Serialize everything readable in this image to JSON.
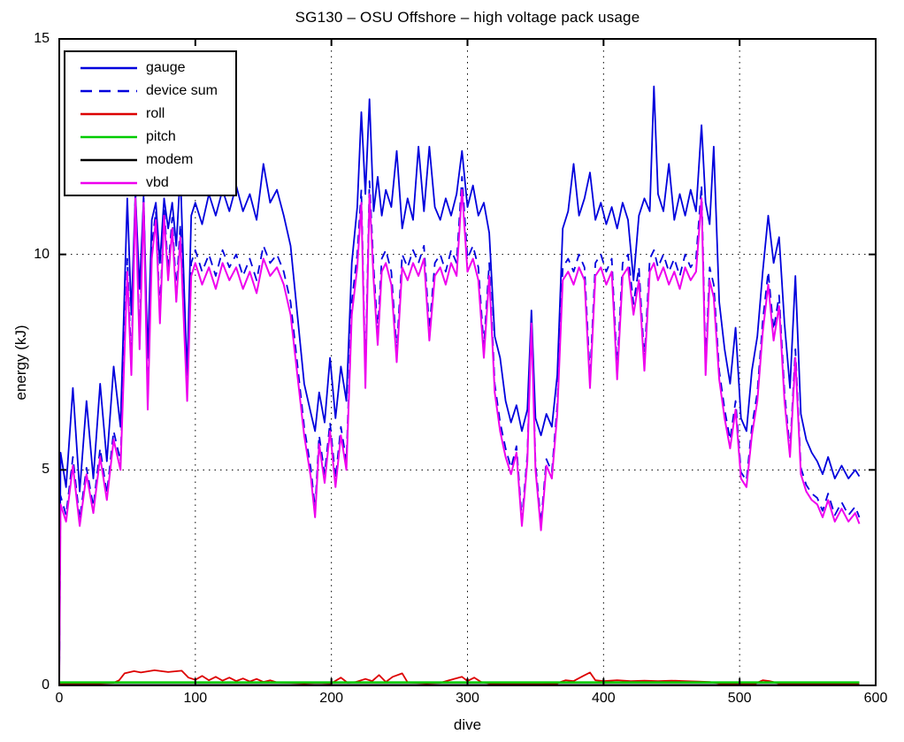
{
  "chart_data": {
    "type": "line",
    "title": "SG130 – OSU Offshore – high voltage pack usage",
    "xlabel": "dive",
    "ylabel": "energy (kJ)",
    "xlim": [
      0,
      600
    ],
    "ylim": [
      0,
      15
    ],
    "x_ticks": [
      0,
      100,
      200,
      300,
      400,
      500,
      600
    ],
    "y_ticks": [
      0,
      5,
      10,
      15
    ],
    "grid": true,
    "grid_style": "dotted",
    "legend_position": "top-left",
    "axis_color": "#000000",
    "x": [
      0,
      1,
      5,
      10,
      15,
      20,
      25,
      30,
      35,
      40,
      45,
      50,
      53,
      56,
      59,
      62,
      65,
      68,
      71,
      74,
      77,
      80,
      83,
      86,
      89,
      92,
      94,
      97,
      100,
      105,
      110,
      115,
      120,
      125,
      130,
      135,
      140,
      145,
      150,
      155,
      160,
      165,
      170,
      175,
      180,
      185,
      188,
      191,
      195,
      199,
      203,
      207,
      211,
      215,
      219,
      222,
      225,
      228,
      231,
      234,
      237,
      240,
      244,
      248,
      252,
      256,
      260,
      264,
      268,
      272,
      276,
      280,
      284,
      288,
      292,
      296,
      300,
      304,
      308,
      312,
      316,
      320,
      324,
      328,
      332,
      336,
      340,
      344,
      347,
      350,
      354,
      358,
      362,
      366,
      370,
      374,
      378,
      382,
      386,
      390,
      394,
      398,
      402,
      406,
      410,
      414,
      418,
      422,
      426,
      430,
      434,
      437,
      440,
      444,
      448,
      452,
      456,
      460,
      464,
      468,
      472,
      475,
      478,
      481,
      485,
      489,
      493,
      497,
      501,
      505,
      509,
      513,
      517,
      521,
      525,
      529,
      533,
      537,
      541,
      545,
      549,
      553,
      557,
      561,
      565,
      570,
      575,
      580,
      585,
      588
    ],
    "series": [
      {
        "name": "gauge",
        "color": "#0000dd",
        "style": "solid",
        "width": 1.8,
        "values": [
          0.15,
          5.4,
          4.6,
          6.9,
          4.5,
          6.6,
          4.8,
          7.0,
          5.2,
          7.4,
          6.0,
          11.3,
          8.6,
          11.4,
          9.2,
          11.3,
          7.6,
          10.8,
          11.2,
          9.8,
          11.3,
          10.6,
          11.2,
          10.2,
          11.9,
          9.0,
          7.2,
          10.9,
          11.2,
          10.7,
          11.4,
          10.9,
          11.5,
          11.0,
          11.6,
          11.0,
          11.4,
          10.8,
          12.1,
          11.2,
          11.5,
          10.9,
          10.2,
          8.6,
          7.0,
          6.3,
          5.9,
          6.8,
          6.1,
          7.6,
          6.2,
          7.4,
          6.6,
          9.8,
          11.1,
          13.3,
          11.4,
          13.6,
          11.0,
          11.8,
          10.9,
          11.5,
          11.1,
          12.4,
          10.6,
          11.3,
          10.8,
          12.5,
          11.0,
          12.5,
          11.1,
          10.8,
          11.3,
          10.9,
          11.4,
          12.4,
          11.1,
          11.6,
          10.9,
          11.2,
          10.5,
          8.1,
          7.6,
          6.6,
          6.1,
          6.5,
          5.9,
          6.4,
          8.7,
          6.2,
          5.8,
          6.3,
          6.0,
          7.2,
          10.6,
          11.0,
          12.1,
          10.9,
          11.3,
          11.9,
          10.8,
          11.2,
          10.7,
          11.1,
          10.6,
          11.2,
          10.8,
          9.4,
          10.9,
          11.3,
          11.0,
          13.9,
          11.4,
          11.0,
          12.1,
          10.8,
          11.4,
          10.9,
          11.5,
          11.0,
          13.0,
          11.2,
          10.7,
          12.5,
          8.9,
          7.8,
          7.0,
          8.3,
          6.2,
          5.9,
          7.3,
          8.1,
          9.6,
          10.9,
          9.8,
          10.4,
          8.4,
          6.9,
          9.5,
          6.3,
          5.7,
          5.4,
          5.2,
          4.9,
          5.3,
          4.8,
          5.1,
          4.8,
          5.0,
          4.85
        ]
      },
      {
        "name": "device sum",
        "color": "#0000dd",
        "style": "dashed",
        "width": 1.8,
        "values": [
          0.12,
          4.4,
          3.95,
          5.3,
          3.85,
          5.05,
          4.15,
          5.5,
          4.45,
          5.9,
          5.2,
          9.9,
          7.45,
          11.5,
          8.05,
          11.4,
          6.6,
          10.2,
          11.0,
          8.65,
          11.1,
          9.65,
          10.85,
          9.15,
          10.7,
          8.3,
          6.85,
          9.8,
          10.1,
          9.6,
          10.0,
          9.5,
          10.1,
          9.7,
          10.0,
          9.5,
          9.9,
          9.4,
          10.2,
          9.8,
          10.0,
          9.6,
          8.9,
          7.45,
          6.0,
          5.0,
          4.1,
          5.8,
          4.9,
          6.1,
          4.8,
          6.0,
          5.2,
          8.9,
          10.0,
          11.5,
          7.15,
          11.7,
          9.7,
          8.2,
          9.9,
          10.1,
          9.6,
          7.75,
          10.0,
          9.7,
          10.1,
          9.8,
          10.2,
          8.25,
          9.8,
          10.0,
          9.6,
          10.1,
          9.8,
          11.8,
          9.9,
          10.2,
          9.7,
          7.85,
          9.8,
          7.0,
          6.1,
          5.5,
          5.05,
          5.55,
          3.85,
          5.35,
          8.6,
          5.15,
          3.75,
          5.25,
          4.95,
          6.5,
          9.7,
          9.9,
          9.6,
          10.0,
          9.7,
          7.15,
          9.8,
          10.0,
          9.6,
          9.9,
          7.35,
          9.8,
          10.0,
          8.85,
          9.7,
          7.55,
          9.9,
          10.1,
          9.7,
          10.0,
          9.6,
          9.9,
          9.5,
          10.0,
          9.7,
          9.9,
          11.6,
          7.45,
          9.7,
          9.3,
          7.3,
          6.4,
          5.7,
          6.6,
          4.95,
          4.75,
          6.0,
          6.8,
          8.45,
          9.6,
          8.25,
          9.05,
          6.8,
          5.45,
          7.8,
          5.05,
          4.65,
          4.45,
          4.35,
          4.05,
          4.45,
          3.95,
          4.25,
          3.95,
          4.15,
          3.9
        ]
      },
      {
        "name": "roll",
        "color": "#dd0000",
        "style": "solid",
        "width": 1.8,
        "x": [
          0,
          20,
          40,
          44,
          48,
          55,
          60,
          70,
          80,
          90,
          95,
          100,
          105,
          110,
          115,
          120,
          125,
          130,
          135,
          140,
          145,
          150,
          155,
          160,
          170,
          180,
          190,
          200,
          207,
          212,
          218,
          225,
          230,
          235,
          240,
          245,
          252,
          256,
          262,
          270,
          280,
          290,
          296,
          300,
          305,
          310,
          318,
          325,
          340,
          355,
          365,
          372,
          378,
          385,
          390,
          394,
          400,
          410,
          420,
          430,
          440,
          450,
          460,
          470,
          478,
          485,
          495,
          505,
          512,
          517,
          522,
          530,
          540,
          555,
          570,
          585,
          588
        ],
        "values": [
          0.03,
          0.04,
          0.06,
          0.12,
          0.28,
          0.33,
          0.3,
          0.35,
          0.31,
          0.34,
          0.18,
          0.13,
          0.22,
          0.12,
          0.2,
          0.11,
          0.18,
          0.1,
          0.16,
          0.09,
          0.15,
          0.08,
          0.12,
          0.07,
          0.06,
          0.05,
          0.06,
          0.05,
          0.18,
          0.06,
          0.08,
          0.15,
          0.1,
          0.24,
          0.08,
          0.2,
          0.28,
          0.07,
          0.06,
          0.05,
          0.06,
          0.15,
          0.2,
          0.1,
          0.18,
          0.08,
          0.04,
          0.03,
          0.03,
          0.03,
          0.04,
          0.12,
          0.1,
          0.22,
          0.3,
          0.12,
          0.1,
          0.12,
          0.1,
          0.11,
          0.1,
          0.11,
          0.1,
          0.09,
          0.08,
          0.05,
          0.04,
          0.04,
          0.05,
          0.12,
          0.1,
          0.04,
          0.04,
          0.04,
          0.04,
          0.04,
          0.04
        ]
      },
      {
        "name": "pitch",
        "color": "#00cc00",
        "style": "solid",
        "width": 2.5,
        "x": [
          0,
          588
        ],
        "values": [
          0.07,
          0.07
        ]
      },
      {
        "name": "modem",
        "color": "#000000",
        "style": "solid",
        "width": 1.6,
        "x": [
          0,
          588
        ],
        "values": [
          0.015,
          0.015
        ]
      },
      {
        "name": "vbd",
        "color": "#ee00ee",
        "style": "solid",
        "width": 2.0,
        "values": [
          0.1,
          4.2,
          3.8,
          5.1,
          3.7,
          4.9,
          4.0,
          5.3,
          4.3,
          5.7,
          5.0,
          9.6,
          7.2,
          11.3,
          7.8,
          11.2,
          6.4,
          9.9,
          10.8,
          8.4,
          10.9,
          9.4,
          10.6,
          8.9,
          10.4,
          8.1,
          6.6,
          9.5,
          9.8,
          9.3,
          9.7,
          9.2,
          9.8,
          9.4,
          9.7,
          9.2,
          9.6,
          9.1,
          9.9,
          9.5,
          9.7,
          9.3,
          8.6,
          7.2,
          5.8,
          4.8,
          3.9,
          5.6,
          4.7,
          5.9,
          4.6,
          5.8,
          5.0,
          8.6,
          9.7,
          11.2,
          6.9,
          11.4,
          9.4,
          7.9,
          9.6,
          9.8,
          9.3,
          7.5,
          9.7,
          9.4,
          9.8,
          9.5,
          9.9,
          8.0,
          9.5,
          9.7,
          9.3,
          9.8,
          9.5,
          11.5,
          9.6,
          9.9,
          9.4,
          7.6,
          9.5,
          6.8,
          5.9,
          5.3,
          4.9,
          5.4,
          3.7,
          5.2,
          8.4,
          5.0,
          3.6,
          5.1,
          4.8,
          6.3,
          9.4,
          9.6,
          9.3,
          9.7,
          9.4,
          6.9,
          9.5,
          9.7,
          9.3,
          9.6,
          7.1,
          9.5,
          9.7,
          8.6,
          9.4,
          7.3,
          9.6,
          9.8,
          9.4,
          9.7,
          9.3,
          9.6,
          9.2,
          9.7,
          9.4,
          9.6,
          11.3,
          7.2,
          9.4,
          9.0,
          7.1,
          6.2,
          5.5,
          6.4,
          4.8,
          4.6,
          5.8,
          6.6,
          8.2,
          9.3,
          8.0,
          8.8,
          6.6,
          5.3,
          7.6,
          4.9,
          4.5,
          4.3,
          4.2,
          3.9,
          4.3,
          3.8,
          4.1,
          3.8,
          4.0,
          3.75
        ]
      }
    ]
  }
}
